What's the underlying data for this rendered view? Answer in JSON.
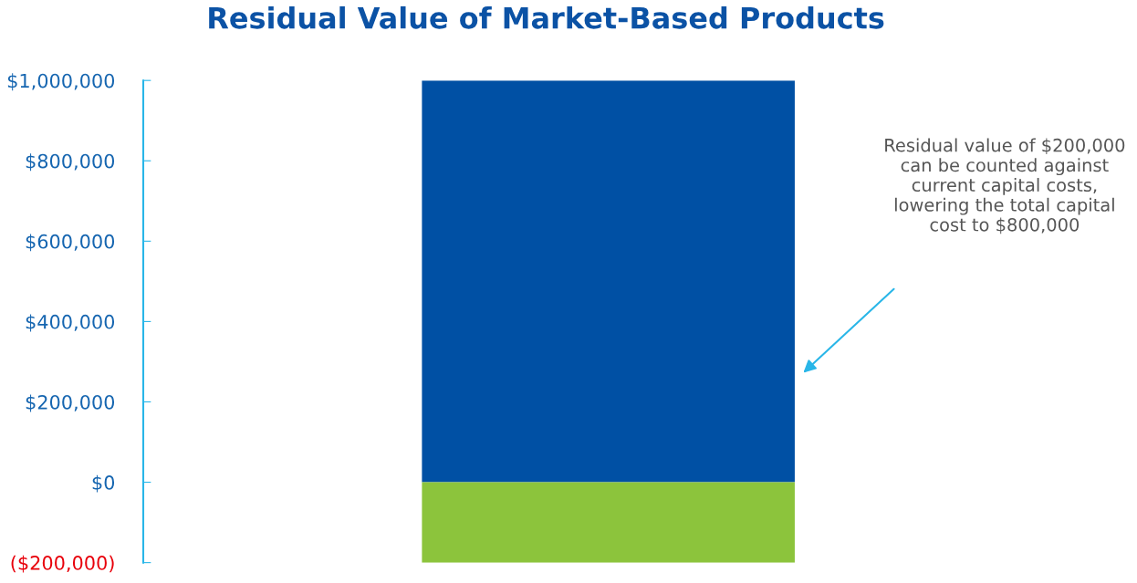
{
  "chart_data": {
    "type": "bar",
    "title": "Residual Value of Market-Based Products",
    "categories": [
      null
    ],
    "stacked": true,
    "series": [
      {
        "color": "#0050a4",
        "values": [
          1000000
        ]
      },
      {
        "color": "#8cc43c",
        "values": [
          -200000
        ]
      }
    ],
    "ylim": [
      -200000,
      1000000
    ],
    "yticks": [
      {
        "value": -200000,
        "label": "($200,000)"
      },
      {
        "value": 0,
        "label": "$0"
      },
      {
        "value": 200000,
        "label": "$200,000"
      },
      {
        "value": 400000,
        "label": "$400,000"
      },
      {
        "value": 600000,
        "label": "$600,000"
      },
      {
        "value": 800000,
        "label": "$800,000"
      },
      {
        "value": 1000000,
        "label": "$1,000,000"
      }
    ],
    "grid": false,
    "annotations": [
      "Residual value of $200,000\ncan be counted against\ncurrent capital costs,\nlowering the total capital\ncost to $800,000"
    ]
  }
}
